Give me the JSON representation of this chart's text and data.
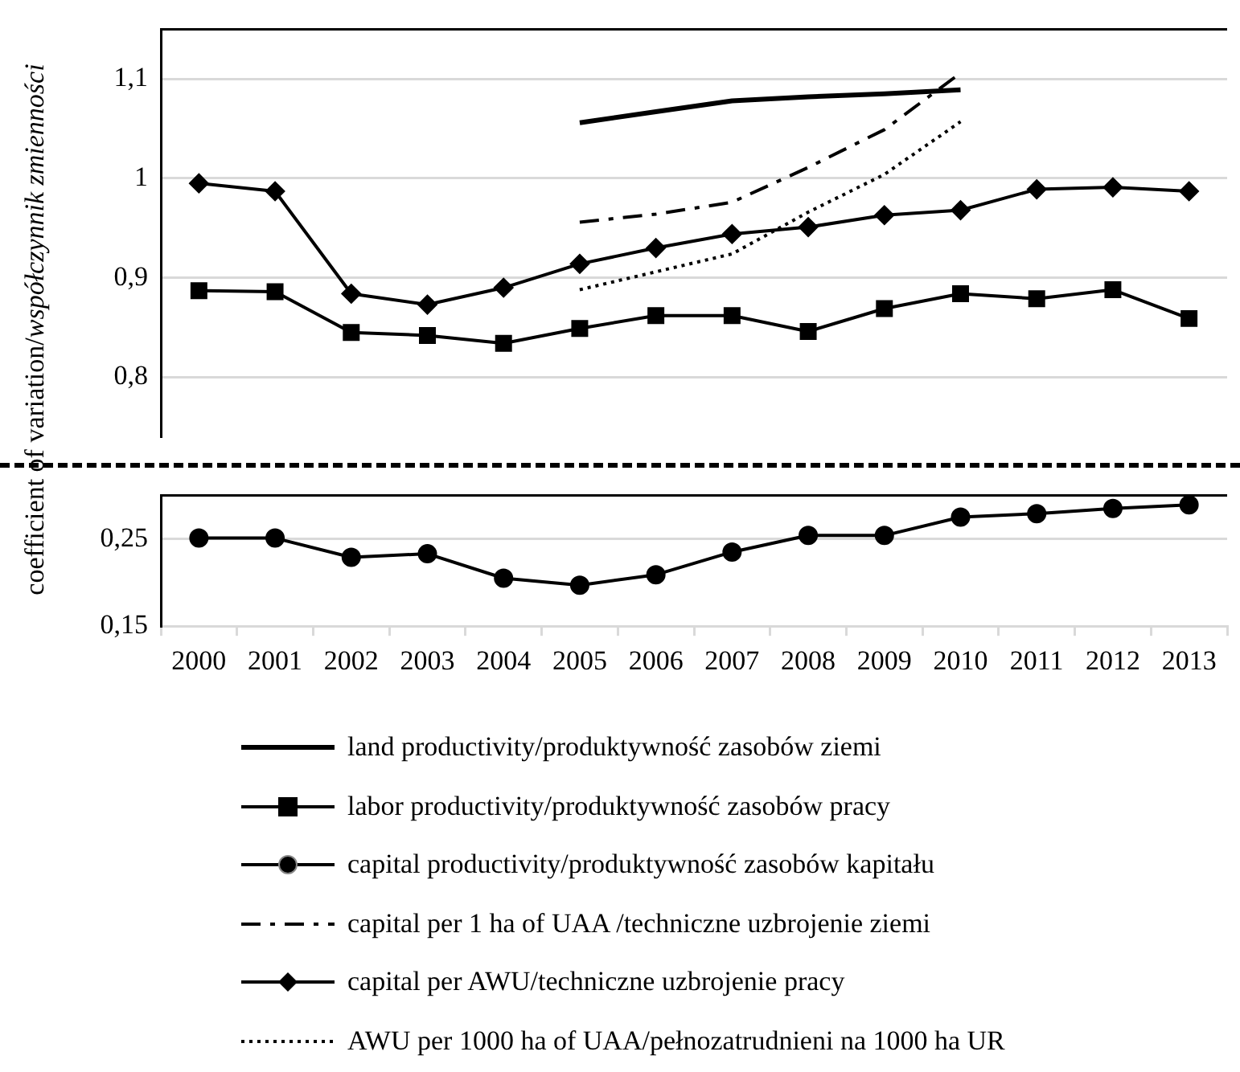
{
  "chart_data": [
    {
      "type": "line",
      "ylabel": "coefficient of variation/współczynnik zmienności",
      "categories": [
        "2000",
        "2001",
        "2002",
        "2003",
        "2004",
        "2005",
        "2006",
        "2007",
        "2008",
        "2009",
        "2010",
        "2011",
        "2012",
        "2013"
      ],
      "series": [
        {
          "name": "land productivity/produktywność zasobów ziemi",
          "color": "#000000",
          "marker": "none",
          "line_style": "solid",
          "values": [
            null,
            null,
            null,
            null,
            null,
            1.056,
            1.067,
            1.078,
            1.082,
            1.085,
            1.089,
            null,
            null,
            null
          ]
        },
        {
          "name": "labor productivity/produktywność zasobów pracy",
          "color": "#000000",
          "marker": "square",
          "line_style": "solid",
          "values": [
            0.887,
            0.886,
            0.845,
            0.842,
            0.834,
            0.849,
            0.862,
            0.862,
            0.846,
            0.869,
            0.884,
            0.879,
            0.888,
            0.859
          ]
        },
        {
          "name": "capital per 1 ha of UAA /techniczne uzbrojenie ziemi",
          "color": "#000000",
          "marker": "none",
          "line_style": "dashed",
          "values": [
            null,
            null,
            null,
            null,
            null,
            0.956,
            0.964,
            0.976,
            1.011,
            1.049,
            1.106,
            null,
            null,
            null
          ]
        },
        {
          "name": "capital per AWU/techniczne uzbrojenie pracy",
          "color": "#000000",
          "marker": "diamond",
          "line_style": "solid",
          "values": [
            0.995,
            0.987,
            0.884,
            0.873,
            0.89,
            0.914,
            0.93,
            0.944,
            0.951,
            0.963,
            0.968,
            0.989,
            0.991,
            0.987
          ]
        },
        {
          "name": "AWU per 1000 ha of UAA/pełnozatrudnieni na 1000 ha UR",
          "color": "#000000",
          "marker": "none",
          "line_style": "dotted",
          "values": [
            null,
            null,
            null,
            null,
            null,
            0.888,
            0.906,
            0.924,
            0.966,
            1.004,
            1.057,
            null,
            null,
            null
          ]
        }
      ],
      "ylim": [
        0.74,
        1.15
      ],
      "yticks": [
        {
          "value": 0.8,
          "label": "0,8"
        },
        {
          "value": 0.9,
          "label": "0,9"
        },
        {
          "value": 1,
          "label": "1"
        },
        {
          "value": 1.1,
          "label": "1,1"
        }
      ],
      "tick_labels": "y",
      "grid": "y",
      "legend": "bottom"
    },
    {
      "type": "line",
      "categories": [
        "2000",
        "2001",
        "2002",
        "2003",
        "2004",
        "2005",
        "2006",
        "2007",
        "2008",
        "2009",
        "2010",
        "2011",
        "2012",
        "2013"
      ],
      "series": [
        {
          "name": "capital productivity/produktywność zasobów kapitału",
          "color": "#000000",
          "marker": "circle",
          "line_style": "solid",
          "values": [
            0.251,
            0.251,
            0.229,
            0.233,
            0.205,
            0.197,
            0.209,
            0.235,
            0.254,
            0.254,
            0.275,
            0.279,
            0.285,
            0.289
          ]
        }
      ],
      "ylim": [
        0.15,
        0.3
      ],
      "yticks": [
        {
          "value": 0.15,
          "label": "0,15"
        },
        {
          "value": 0.25,
          "label": "0,25"
        }
      ],
      "grid": "y",
      "legend": "bottom"
    }
  ]
}
